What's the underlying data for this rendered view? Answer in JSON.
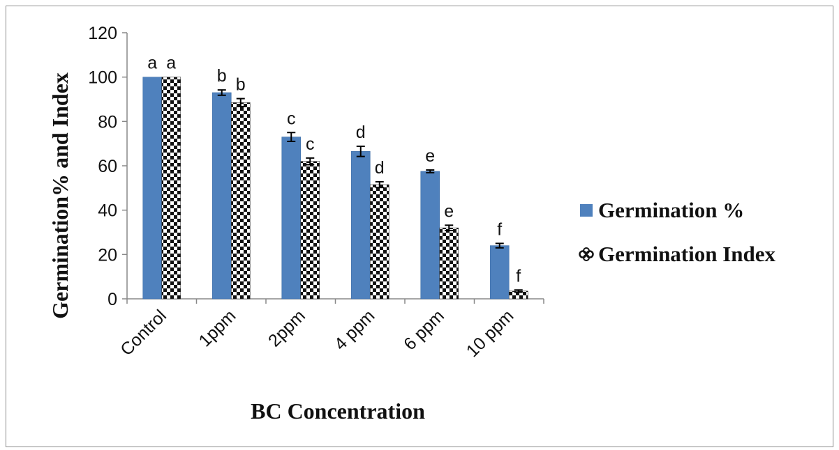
{
  "chart_data": {
    "type": "bar",
    "title": "",
    "xlabel": "BC Concentration",
    "ylabel": "Germination% and Index",
    "ylim": [
      0,
      120
    ],
    "yticks": [
      0,
      20,
      40,
      60,
      80,
      100,
      120
    ],
    "grid": false,
    "legend_position": "right",
    "categories": [
      "Control",
      "1ppm",
      "2ppm",
      "4 ppm",
      "6 ppm",
      "10 ppm"
    ],
    "series": [
      {
        "name": "Germination %",
        "color": "#4f81bd",
        "pattern": "solid",
        "values": [
          100,
          93,
          73,
          66.5,
          57.5,
          24
        ],
        "errors": [
          0,
          1.2,
          2,
          2.3,
          0.6,
          1
        ],
        "letters": [
          "a",
          "b",
          "c",
          "d",
          "e",
          "f"
        ]
      },
      {
        "name": "Germination Index",
        "color": "#000000",
        "pattern": "checker",
        "values": [
          100,
          88.5,
          62,
          51.5,
          32,
          3.5
        ],
        "errors": [
          0,
          1.8,
          1.5,
          1.3,
          1.2,
          0.5
        ],
        "letters": [
          "a",
          "b",
          "c",
          "d",
          "e",
          "f"
        ]
      }
    ]
  }
}
